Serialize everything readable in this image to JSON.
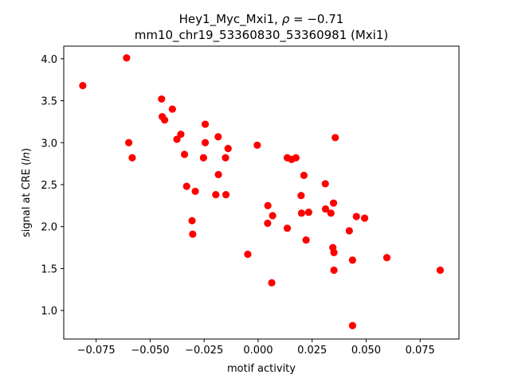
{
  "chart_data": {
    "type": "scatter",
    "title_line1": "Hey1_Myc_Mxi1, ",
    "title_rho_symbol": "ρ",
    "title_rho_value": " = −0.71",
    "title_line2": "mm10_chr19_53360830_53360981 (Mxi1)",
    "xlabel": "motif activity",
    "ylabel_prefix": "signal at CRE (",
    "ylabel_italic": "ln",
    "ylabel_suffix": ")",
    "xlim": [
      -0.09,
      0.093
    ],
    "ylim": [
      0.66,
      4.15
    ],
    "xticks": [
      {
        "value": -0.075,
        "label": "−0.075"
      },
      {
        "value": -0.05,
        "label": "−0.050"
      },
      {
        "value": -0.025,
        "label": "−0.025"
      },
      {
        "value": 0.0,
        "label": "0.000"
      },
      {
        "value": 0.025,
        "label": "0.025"
      },
      {
        "value": 0.05,
        "label": "0.050"
      },
      {
        "value": 0.075,
        "label": "0.075"
      }
    ],
    "yticks": [
      {
        "value": 1.0,
        "label": "1.0"
      },
      {
        "value": 1.5,
        "label": "1.5"
      },
      {
        "value": 2.0,
        "label": "2.0"
      },
      {
        "value": 2.5,
        "label": "2.5"
      },
      {
        "value": 3.0,
        "label": "3.0"
      },
      {
        "value": 3.5,
        "label": "3.5"
      },
      {
        "value": 4.0,
        "label": "4.0"
      }
    ],
    "marker_color": "#ff0000",
    "points": [
      {
        "x": -0.0812,
        "y": 3.68
      },
      {
        "x": -0.0609,
        "y": 4.01
      },
      {
        "x": -0.0599,
        "y": 3.0
      },
      {
        "x": -0.0583,
        "y": 2.82
      },
      {
        "x": -0.0447,
        "y": 3.52
      },
      {
        "x": -0.0444,
        "y": 3.31
      },
      {
        "x": -0.0433,
        "y": 3.27
      },
      {
        "x": -0.0397,
        "y": 3.4
      },
      {
        "x": -0.0376,
        "y": 3.04
      },
      {
        "x": -0.0358,
        "y": 3.1
      },
      {
        "x": -0.0341,
        "y": 2.86
      },
      {
        "x": -0.0331,
        "y": 2.48
      },
      {
        "x": -0.0306,
        "y": 2.07
      },
      {
        "x": -0.0303,
        "y": 1.91
      },
      {
        "x": -0.0291,
        "y": 2.42
      },
      {
        "x": -0.0253,
        "y": 2.82
      },
      {
        "x": -0.0245,
        "y": 3.22
      },
      {
        "x": -0.0245,
        "y": 3.0
      },
      {
        "x": -0.0196,
        "y": 2.38
      },
      {
        "x": -0.0185,
        "y": 3.07
      },
      {
        "x": -0.0184,
        "y": 2.62
      },
      {
        "x": -0.0151,
        "y": 2.82
      },
      {
        "x": -0.0149,
        "y": 2.38
      },
      {
        "x": -0.0139,
        "y": 2.93
      },
      {
        "x": -0.0048,
        "y": 1.67
      },
      {
        "x": -0.0004,
        "y": 2.97
      },
      {
        "x": 0.0044,
        "y": 2.04
      },
      {
        "x": 0.0045,
        "y": 2.25
      },
      {
        "x": 0.0063,
        "y": 1.33
      },
      {
        "x": 0.0067,
        "y": 2.13
      },
      {
        "x": 0.0135,
        "y": 2.82
      },
      {
        "x": 0.0135,
        "y": 1.98
      },
      {
        "x": 0.0155,
        "y": 2.8
      },
      {
        "x": 0.0175,
        "y": 2.82
      },
      {
        "x": 0.0199,
        "y": 2.37
      },
      {
        "x": 0.0201,
        "y": 2.16
      },
      {
        "x": 0.0212,
        "y": 2.61
      },
      {
        "x": 0.0222,
        "y": 1.84
      },
      {
        "x": 0.0234,
        "y": 2.17
      },
      {
        "x": 0.0311,
        "y": 2.51
      },
      {
        "x": 0.0312,
        "y": 2.21
      },
      {
        "x": 0.0337,
        "y": 2.16
      },
      {
        "x": 0.0346,
        "y": 1.75
      },
      {
        "x": 0.0349,
        "y": 2.28
      },
      {
        "x": 0.0351,
        "y": 1.69
      },
      {
        "x": 0.0351,
        "y": 1.48
      },
      {
        "x": 0.0357,
        "y": 3.06
      },
      {
        "x": 0.0422,
        "y": 1.95
      },
      {
        "x": 0.0437,
        "y": 1.6
      },
      {
        "x": 0.0437,
        "y": 0.82
      },
      {
        "x": 0.0455,
        "y": 2.12
      },
      {
        "x": 0.0493,
        "y": 2.1
      },
      {
        "x": 0.0596,
        "y": 1.63
      },
      {
        "x": 0.0843,
        "y": 1.48
      }
    ]
  }
}
